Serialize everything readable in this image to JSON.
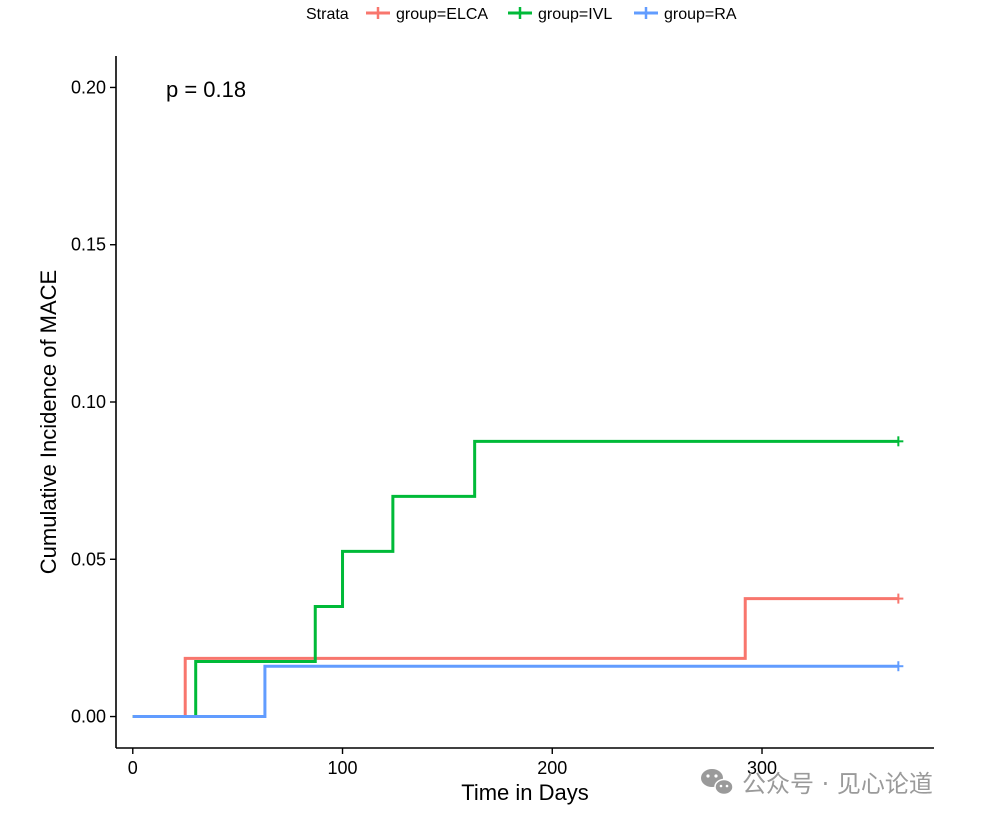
{
  "chart_data": {
    "type": "line",
    "step": true,
    "title": "",
    "xlabel": "Time in Days",
    "ylabel": "Cumulative Incidence of MACE",
    "xlim": [
      -8,
      382
    ],
    "ylim": [
      -0.01,
      0.21
    ],
    "x_ticks": [
      0,
      100,
      200,
      300
    ],
    "x_tick_labels": [
      "0",
      "100",
      "200",
      "300"
    ],
    "y_ticks": [
      0.0,
      0.05,
      0.1,
      0.15,
      0.2
    ],
    "y_tick_labels": [
      "0.00",
      "0.05",
      "0.10",
      "0.15",
      "0.20"
    ],
    "grid": false,
    "annotation": "p = 0.18",
    "legend": {
      "title": "Strata",
      "position": "top",
      "entries": [
        "group=ELCA",
        "group=IVL",
        "group=RA"
      ]
    },
    "series": [
      {
        "name": "group=ELCA",
        "color": "#F8766D",
        "x": [
          0,
          25,
          292,
          365
        ],
        "y": [
          0.0,
          0.0185,
          0.0375,
          0.0375
        ],
        "censor": [
          365
        ]
      },
      {
        "name": "group=IVL",
        "color": "#00BA38",
        "x": [
          0,
          30,
          87,
          100,
          124,
          163,
          365
        ],
        "y": [
          0.0,
          0.0175,
          0.035,
          0.0525,
          0.07,
          0.0875,
          0.0875
        ],
        "censor": [
          365
        ]
      },
      {
        "name": "group=RA",
        "color": "#619CFF",
        "x": [
          0,
          63,
          365
        ],
        "y": [
          0.0,
          0.016,
          0.016
        ],
        "censor": [
          365
        ]
      }
    ]
  },
  "watermark": {
    "icon": "wechat-icon",
    "text": "公众号 · 见心论道"
  }
}
